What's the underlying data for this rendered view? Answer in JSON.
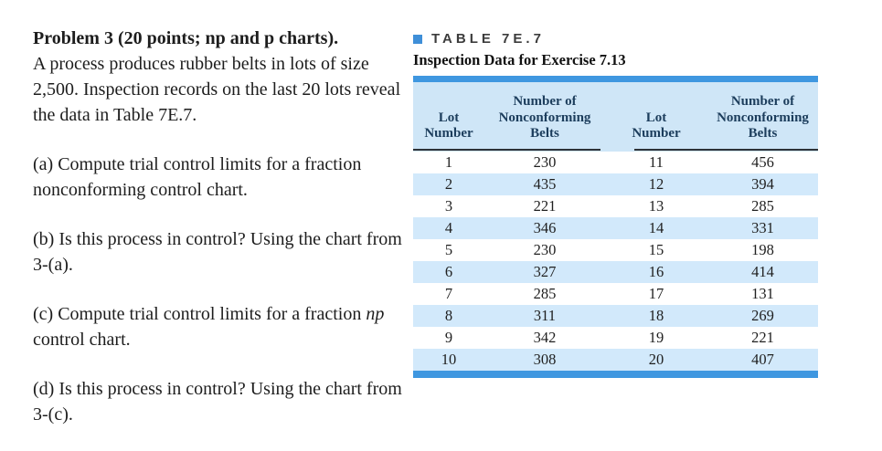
{
  "problem": {
    "title": "Problem 3 (20 points; np and p charts).",
    "intro": "A process produces rubber belts in lots of size 2,500. Inspection records on the last 20 lots reveal the data in Table 7E.7.",
    "part_a": "(a) Compute trial control limits for a fraction nonconforming control chart.",
    "part_b": "(b) Is this process in control? Using the chart from 3-(a).",
    "part_c_pre": "(c) Compute trial control limits for a fraction ",
    "part_c_italic": "np",
    "part_c_post": " control chart.",
    "part_d": "(d) Is this process in control? Using the chart from 3-(c)."
  },
  "table": {
    "label": "TABLE 7E.7",
    "caption": "Inspection Data for Exercise 7.13",
    "bullet_icon": "square-bullet-icon",
    "col_headers": [
      "Lot\nNumber",
      "Number of\nNonconforming\nBelts",
      "Lot\nNumber",
      "Number of\nNonconforming\nBelts"
    ],
    "rows": [
      [
        "1",
        "230",
        "11",
        "456"
      ],
      [
        "2",
        "435",
        "12",
        "394"
      ],
      [
        "3",
        "221",
        "13",
        "285"
      ],
      [
        "4",
        "346",
        "14",
        "331"
      ],
      [
        "5",
        "230",
        "15",
        "198"
      ],
      [
        "6",
        "327",
        "16",
        "414"
      ],
      [
        "7",
        "285",
        "17",
        "131"
      ],
      [
        "8",
        "311",
        "18",
        "269"
      ],
      [
        "9",
        "342",
        "19",
        "221"
      ],
      [
        "10",
        "308",
        "20",
        "407"
      ]
    ],
    "colors": {
      "bar_blue": "#3f97e0",
      "header_bg": "#cfe6f7",
      "row_alt_bg": "#d2e9fb",
      "header_text": "#1c3d5c",
      "rule": "#2e3338",
      "bullet_blue": "#3f8fd8"
    }
  }
}
